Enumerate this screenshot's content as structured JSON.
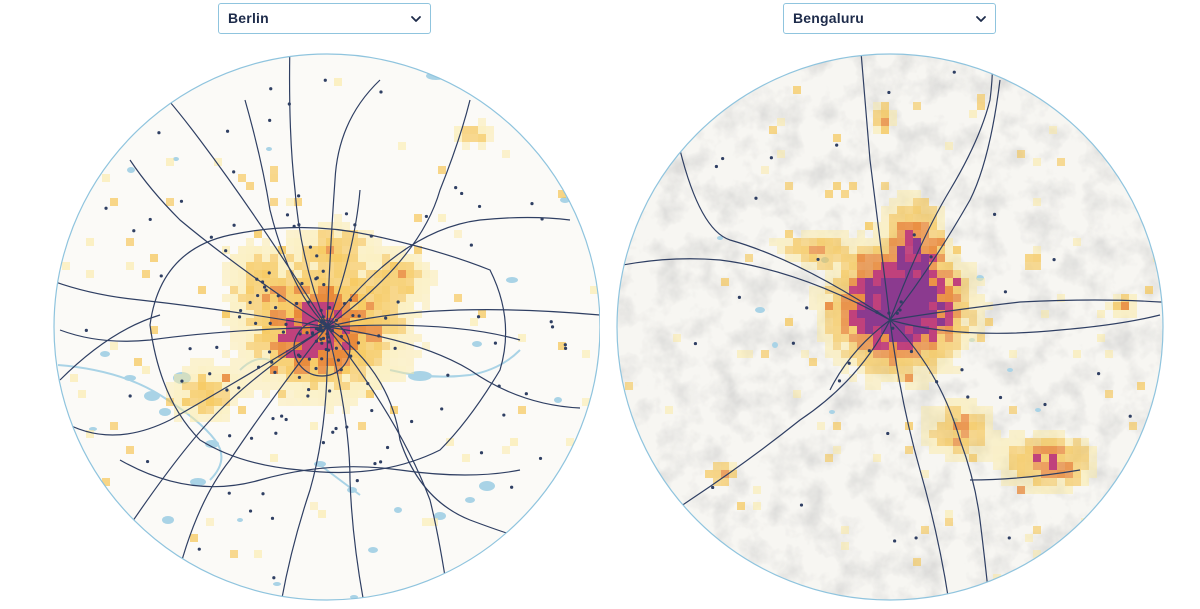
{
  "left_panel": {
    "city_select": {
      "selected": "Berlin",
      "icon": "chevron-down-icon"
    }
  },
  "right_panel": {
    "city_select": {
      "selected": "Bengaluru",
      "icon": "chevron-down-icon"
    }
  },
  "colors": {
    "circle_border": "#8fc4de",
    "map_background": "#fbfaf7",
    "water": "#a9d3e6",
    "rail_lines": "#2f3f63",
    "density_low": "#fbe9a0",
    "density_mid": "#f5c24a",
    "density_high": "#e98a3a",
    "density_very_high": "#c0417c",
    "density_max": "#8b3a8f"
  }
}
